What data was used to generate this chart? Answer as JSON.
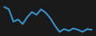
{
  "x": [
    0,
    1,
    2,
    3,
    4,
    5,
    6,
    7,
    8,
    9,
    10,
    11,
    12,
    13,
    14,
    15,
    16,
    17,
    18,
    19
  ],
  "y": [
    11.5,
    10.8,
    7.2,
    7.8,
    6.5,
    8.5,
    10.0,
    9.2,
    10.8,
    9.8,
    8.2,
    6.0,
    4.2,
    5.0,
    4.5,
    5.2,
    4.8,
    4.2,
    5.0,
    4.8
  ],
  "line_color": "#3a8fc7",
  "linewidth": 1.5,
  "background_color": "#1a1a1a",
  "ylim": [
    3.5,
    13
  ]
}
